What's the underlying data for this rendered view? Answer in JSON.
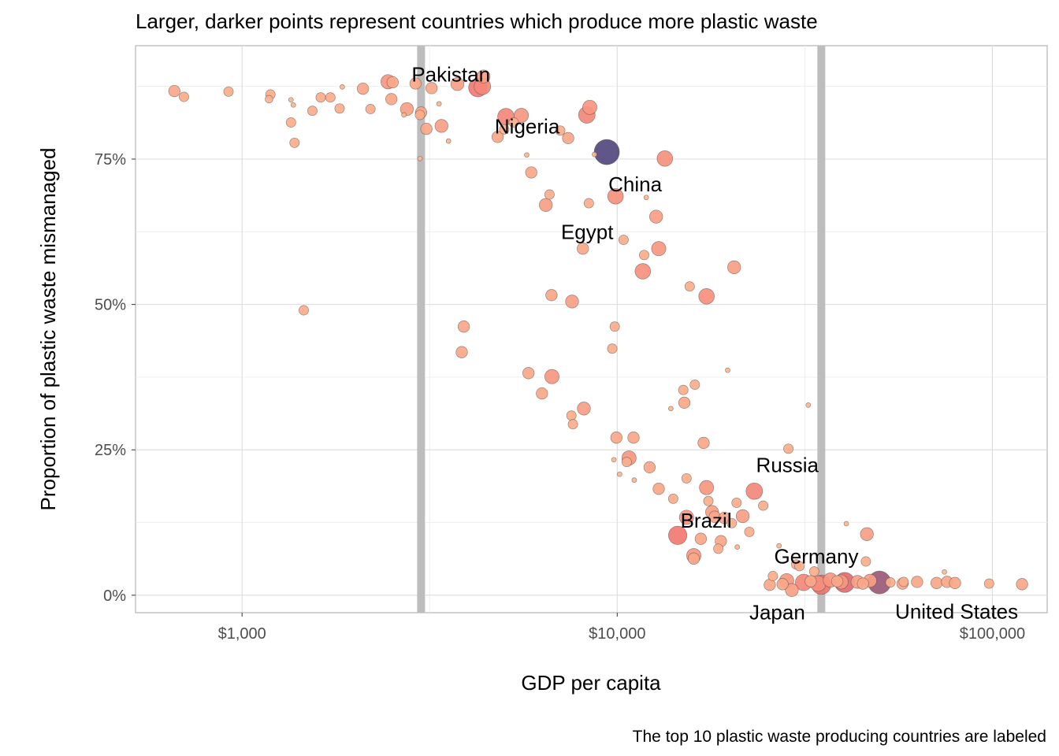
{
  "chart_data": {
    "type": "scatter",
    "title": "Larger, darker points represent countries which produce more plastic waste",
    "caption": "The top 10 plastic waste producing countries are labeled",
    "xlabel": "GDP per capita",
    "ylabel": "Proportion of plastic waste mismanaged",
    "x_scale": "log10",
    "xlim": [
      520,
      140000
    ],
    "ylim": [
      -0.03,
      0.945
    ],
    "x_ticks": [
      {
        "value": 1000,
        "label": "$1,000"
      },
      {
        "value": 10000,
        "label": "$10,000"
      },
      {
        "value": 100000,
        "label": "$100,000"
      }
    ],
    "y_ticks": [
      {
        "value": 0,
        "label": "0%"
      },
      {
        "value": 0.25,
        "label": "25%"
      },
      {
        "value": 0.5,
        "label": "50%"
      },
      {
        "value": 0.75,
        "label": "75%"
      }
    ],
    "grid": true,
    "reference_lines_x": [
      3000,
      35000
    ],
    "reference_line_color": "#bdbdbd",
    "point_color_scale": {
      "low": "#fbb68f",
      "mid": "#f0716e",
      "high": "#54487e"
    },
    "points": [
      {
        "x": 660,
        "y": 0.867,
        "s": 2
      },
      {
        "x": 700,
        "y": 0.857,
        "s": 1.5
      },
      {
        "x": 920,
        "y": 0.866,
        "s": 1.5
      },
      {
        "x": 1180,
        "y": 0.853,
        "s": 1.2
      },
      {
        "x": 1190,
        "y": 0.861,
        "s": 1.5
      },
      {
        "x": 1350,
        "y": 0.852,
        "s": 1
      },
      {
        "x": 1370,
        "y": 0.843,
        "s": 1
      },
      {
        "x": 1350,
        "y": 0.813,
        "s": 1.5
      },
      {
        "x": 1380,
        "y": 0.778,
        "s": 1.5
      },
      {
        "x": 1460,
        "y": 0.49,
        "s": 1.5
      },
      {
        "x": 1540,
        "y": 0.833,
        "s": 1.5
      },
      {
        "x": 1620,
        "y": 0.856,
        "s": 1.5
      },
      {
        "x": 1720,
        "y": 0.856,
        "s": 1.5
      },
      {
        "x": 1820,
        "y": 0.837,
        "s": 1.5
      },
      {
        "x": 1850,
        "y": 0.874,
        "s": 1
      },
      {
        "x": 2100,
        "y": 0.871,
        "s": 2
      },
      {
        "x": 2200,
        "y": 0.836,
        "s": 1.5
      },
      {
        "x": 2450,
        "y": 0.883,
        "s": 3
      },
      {
        "x": 2520,
        "y": 0.882,
        "s": 2
      },
      {
        "x": 2500,
        "y": 0.853,
        "s": 2
      },
      {
        "x": 2700,
        "y": 0.826,
        "s": 1
      },
      {
        "x": 2750,
        "y": 0.836,
        "s": 2.5
      },
      {
        "x": 2900,
        "y": 0.88,
        "s": 2
      },
      {
        "x": 2980,
        "y": 0.826,
        "s": 1.5
      },
      {
        "x": 3000,
        "y": 0.83,
        "s": 2
      },
      {
        "x": 2980,
        "y": 0.751,
        "s": 1
      },
      {
        "x": 3100,
        "y": 0.802,
        "s": 2
      },
      {
        "x": 3200,
        "y": 0.872,
        "s": 2
      },
      {
        "x": 3350,
        "y": 0.845,
        "s": 1
      },
      {
        "x": 3400,
        "y": 0.807,
        "s": 2.5
      },
      {
        "x": 3550,
        "y": 0.781,
        "s": 1
      },
      {
        "x": 3750,
        "y": 0.879,
        "s": 2.5
      },
      {
        "x": 3900,
        "y": 0.462,
        "s": 2
      },
      {
        "x": 3850,
        "y": 0.418,
        "s": 2
      },
      {
        "x": 4250,
        "y": 0.873,
        "s": 5
      },
      {
        "x": 4370,
        "y": 0.875,
        "s": 4,
        "label": "Pakistan"
      },
      {
        "x": 4400,
        "y": 0.892,
        "s": 2.5
      },
      {
        "x": 4800,
        "y": 0.788,
        "s": 2
      },
      {
        "x": 5000,
        "y": 0.801,
        "s": 1.5
      },
      {
        "x": 5050,
        "y": 0.823,
        "s": 4
      },
      {
        "x": 5300,
        "y": 0.813,
        "s": 1.5
      },
      {
        "x": 5550,
        "y": 0.825,
        "s": 3
      },
      {
        "x": 5740,
        "y": 0.757,
        "s": 1
      },
      {
        "x": 5900,
        "y": 0.727,
        "s": 2
      },
      {
        "x": 5800,
        "y": 0.382,
        "s": 2
      },
      {
        "x": 6300,
        "y": 0.347,
        "s": 2
      },
      {
        "x": 6450,
        "y": 0.671,
        "s": 2.5
      },
      {
        "x": 6600,
        "y": 0.689,
        "s": 1.5
      },
      {
        "x": 6680,
        "y": 0.516,
        "s": 2
      },
      {
        "x": 6700,
        "y": 0.376,
        "s": 3
      },
      {
        "x": 7050,
        "y": 0.799,
        "s": 1.5
      },
      {
        "x": 7400,
        "y": 0.786,
        "s": 2,
        "label": "Nigeria"
      },
      {
        "x": 7550,
        "y": 0.309,
        "s": 1.5
      },
      {
        "x": 7620,
        "y": 0.294,
        "s": 1.5
      },
      {
        "x": 7580,
        "y": 0.505,
        "s": 2.5
      },
      {
        "x": 8100,
        "y": 0.596,
        "s": 2
      },
      {
        "x": 8150,
        "y": 0.321,
        "s": 2.5
      },
      {
        "x": 8300,
        "y": 0.826,
        "s": 4
      },
      {
        "x": 8450,
        "y": 0.839,
        "s": 3
      },
      {
        "x": 8400,
        "y": 0.674,
        "s": 1.5
      },
      {
        "x": 8700,
        "y": 0.758,
        "s": 1
      },
      {
        "x": 9380,
        "y": 0.762,
        "s": 10,
        "label": "China"
      },
      {
        "x": 9700,
        "y": 0.424,
        "s": 1.5
      },
      {
        "x": 9800,
        "y": 0.233,
        "s": 1
      },
      {
        "x": 9850,
        "y": 0.462,
        "s": 1.5
      },
      {
        "x": 9900,
        "y": 0.686,
        "s": 3.5,
        "label": "Egypt"
      },
      {
        "x": 9950,
        "y": 0.271,
        "s": 2
      },
      {
        "x": 10150,
        "y": 0.208,
        "s": 1
      },
      {
        "x": 10400,
        "y": 0.611,
        "s": 1.5
      },
      {
        "x": 10600,
        "y": 0.229,
        "s": 1.5
      },
      {
        "x": 10750,
        "y": 0.236,
        "s": 3
      },
      {
        "x": 11100,
        "y": 0.198,
        "s": 1
      },
      {
        "x": 11050,
        "y": 0.271,
        "s": 2
      },
      {
        "x": 11700,
        "y": 0.557,
        "s": 3.5
      },
      {
        "x": 11800,
        "y": 0.585,
        "s": 1.5
      },
      {
        "x": 11950,
        "y": 0.684,
        "s": 1
      },
      {
        "x": 12200,
        "y": 0.22,
        "s": 2
      },
      {
        "x": 12700,
        "y": 0.651,
        "s": 2.5
      },
      {
        "x": 12900,
        "y": 0.596,
        "s": 3
      },
      {
        "x": 12900,
        "y": 0.183,
        "s": 2
      },
      {
        "x": 13400,
        "y": 0.751,
        "s": 3.5
      },
      {
        "x": 13900,
        "y": 0.321,
        "s": 1
      },
      {
        "x": 14100,
        "y": 0.166,
        "s": 1.5
      },
      {
        "x": 14500,
        "y": 0.103,
        "s": 5,
        "label": "Brazil"
      },
      {
        "x": 15000,
        "y": 0.353,
        "s": 1.5
      },
      {
        "x": 15100,
        "y": 0.331,
        "s": 2
      },
      {
        "x": 15300,
        "y": 0.201,
        "s": 1.5
      },
      {
        "x": 15300,
        "y": 0.134,
        "s": 3
      },
      {
        "x": 15600,
        "y": 0.531,
        "s": 1.5
      },
      {
        "x": 16000,
        "y": 0.063,
        "s": 2
      },
      {
        "x": 16000,
        "y": 0.068,
        "s": 3
      },
      {
        "x": 16100,
        "y": 0.362,
        "s": 1.5
      },
      {
        "x": 16700,
        "y": 0.097,
        "s": 2
      },
      {
        "x": 17000,
        "y": 0.262,
        "s": 2
      },
      {
        "x": 17300,
        "y": 0.514,
        "s": 3.5
      },
      {
        "x": 17300,
        "y": 0.185,
        "s": 3
      },
      {
        "x": 17500,
        "y": 0.162,
        "s": 1.5
      },
      {
        "x": 17900,
        "y": 0.143,
        "s": 2.5
      },
      {
        "x": 18200,
        "y": 0.135,
        "s": 2
      },
      {
        "x": 18600,
        "y": 0.08,
        "s": 1.5
      },
      {
        "x": 18900,
        "y": 0.093,
        "s": 2
      },
      {
        "x": 19300,
        "y": 0.133,
        "s": 2
      },
      {
        "x": 19700,
        "y": 0.387,
        "s": 1
      },
      {
        "x": 20200,
        "y": 0.124,
        "s": 1.5
      },
      {
        "x": 20500,
        "y": 0.564,
        "s": 2.5
      },
      {
        "x": 20800,
        "y": 0.159,
        "s": 1.5
      },
      {
        "x": 20900,
        "y": 0.083,
        "s": 1
      },
      {
        "x": 21600,
        "y": 0.136,
        "s": 2.5
      },
      {
        "x": 22500,
        "y": 0.109,
        "s": 1.5
      },
      {
        "x": 23200,
        "y": 0.179,
        "s": 4,
        "label": "Russia"
      },
      {
        "x": 24500,
        "y": 0.154,
        "s": 1.5
      },
      {
        "x": 25500,
        "y": 0.018,
        "s": 2
      },
      {
        "x": 26000,
        "y": 0.033,
        "s": 1.5
      },
      {
        "x": 27000,
        "y": 0.085,
        "s": 1
      },
      {
        "x": 27600,
        "y": 0.019,
        "s": 2
      },
      {
        "x": 28300,
        "y": 0.025,
        "s": 3
      },
      {
        "x": 28600,
        "y": 0.252,
        "s": 1.5
      },
      {
        "x": 29200,
        "y": 0.009,
        "s": 2.5
      },
      {
        "x": 30000,
        "y": 0.053,
        "s": 1.5
      },
      {
        "x": 30600,
        "y": 0.05,
        "s": 1.5
      },
      {
        "x": 31400,
        "y": 0.022,
        "s": 4
      },
      {
        "x": 32300,
        "y": 0.327,
        "s": 1
      },
      {
        "x": 32800,
        "y": 0.024,
        "s": 2
      },
      {
        "x": 33500,
        "y": 0.041,
        "s": 1.5
      },
      {
        "x": 34300,
        "y": 0.02,
        "s": 3.5
      },
      {
        "x": 35000,
        "y": 0.018,
        "s": 5.5,
        "label": "Japan"
      },
      {
        "x": 37000,
        "y": 0.026,
        "s": 3
      },
      {
        "x": 38600,
        "y": 0.024,
        "s": 2
      },
      {
        "x": 39500,
        "y": 0.023,
        "s": 3
      },
      {
        "x": 40400,
        "y": 0.022,
        "s": 6,
        "label": "Germany"
      },
      {
        "x": 40800,
        "y": 0.123,
        "s": 1
      },
      {
        "x": 43700,
        "y": 0.023,
        "s": 2.5
      },
      {
        "x": 45200,
        "y": 0.02,
        "s": 2
      },
      {
        "x": 46000,
        "y": 0.058,
        "s": 1.5
      },
      {
        "x": 46300,
        "y": 0.105,
        "s": 2.5
      },
      {
        "x": 47200,
        "y": 0.025,
        "s": 2.5
      },
      {
        "x": 50000,
        "y": 0.022,
        "s": 8,
        "label": "United States"
      },
      {
        "x": 53500,
        "y": 0.022,
        "s": 1.5
      },
      {
        "x": 57600,
        "y": 0.02,
        "s": 2
      },
      {
        "x": 58000,
        "y": 0.023,
        "s": 1.5
      },
      {
        "x": 63000,
        "y": 0.023,
        "s": 2
      },
      {
        "x": 71000,
        "y": 0.021,
        "s": 2
      },
      {
        "x": 74500,
        "y": 0.04,
        "s": 1
      },
      {
        "x": 75700,
        "y": 0.023,
        "s": 2
      },
      {
        "x": 79500,
        "y": 0.021,
        "s": 2
      },
      {
        "x": 98000,
        "y": 0.02,
        "s": 1.5
      },
      {
        "x": 120000,
        "y": 0.019,
        "s": 2
      }
    ]
  }
}
